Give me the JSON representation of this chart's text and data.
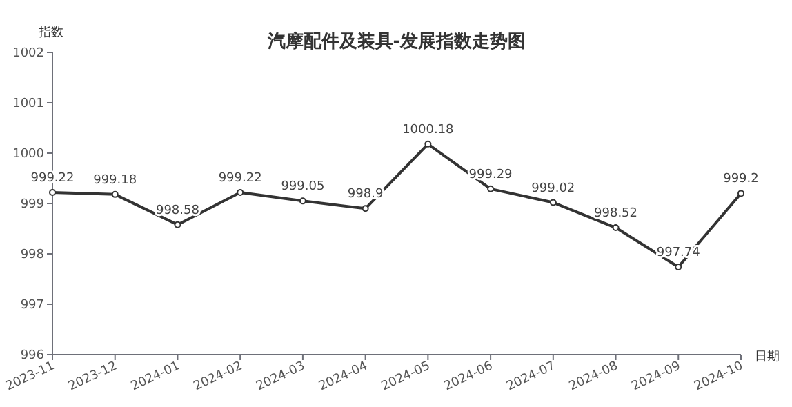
{
  "chart_data": {
    "type": "line",
    "title": "汽摩配件及装具-发展指数走势图",
    "xlabel": "日期",
    "ylabel": "指数",
    "categories": [
      "2023-11",
      "2023-12",
      "2024-01",
      "2024-02",
      "2024-03",
      "2024-04",
      "2024-05",
      "2024-06",
      "2024-07",
      "2024-08",
      "2024-09",
      "2024-10"
    ],
    "series": [
      {
        "color": "#333333",
        "values": [
          999.22,
          999.18,
          998.58,
          999.22,
          999.05,
          998.9,
          1000.18,
          999.29,
          999.02,
          998.52,
          997.74,
          999.2
        ]
      }
    ],
    "ylim": [
      996,
      1002
    ],
    "yticks": [
      996,
      997,
      998,
      999,
      1000,
      1001,
      1002
    ],
    "data_labels": true,
    "marker": "circle",
    "line_style": "solid",
    "grid": false
  }
}
